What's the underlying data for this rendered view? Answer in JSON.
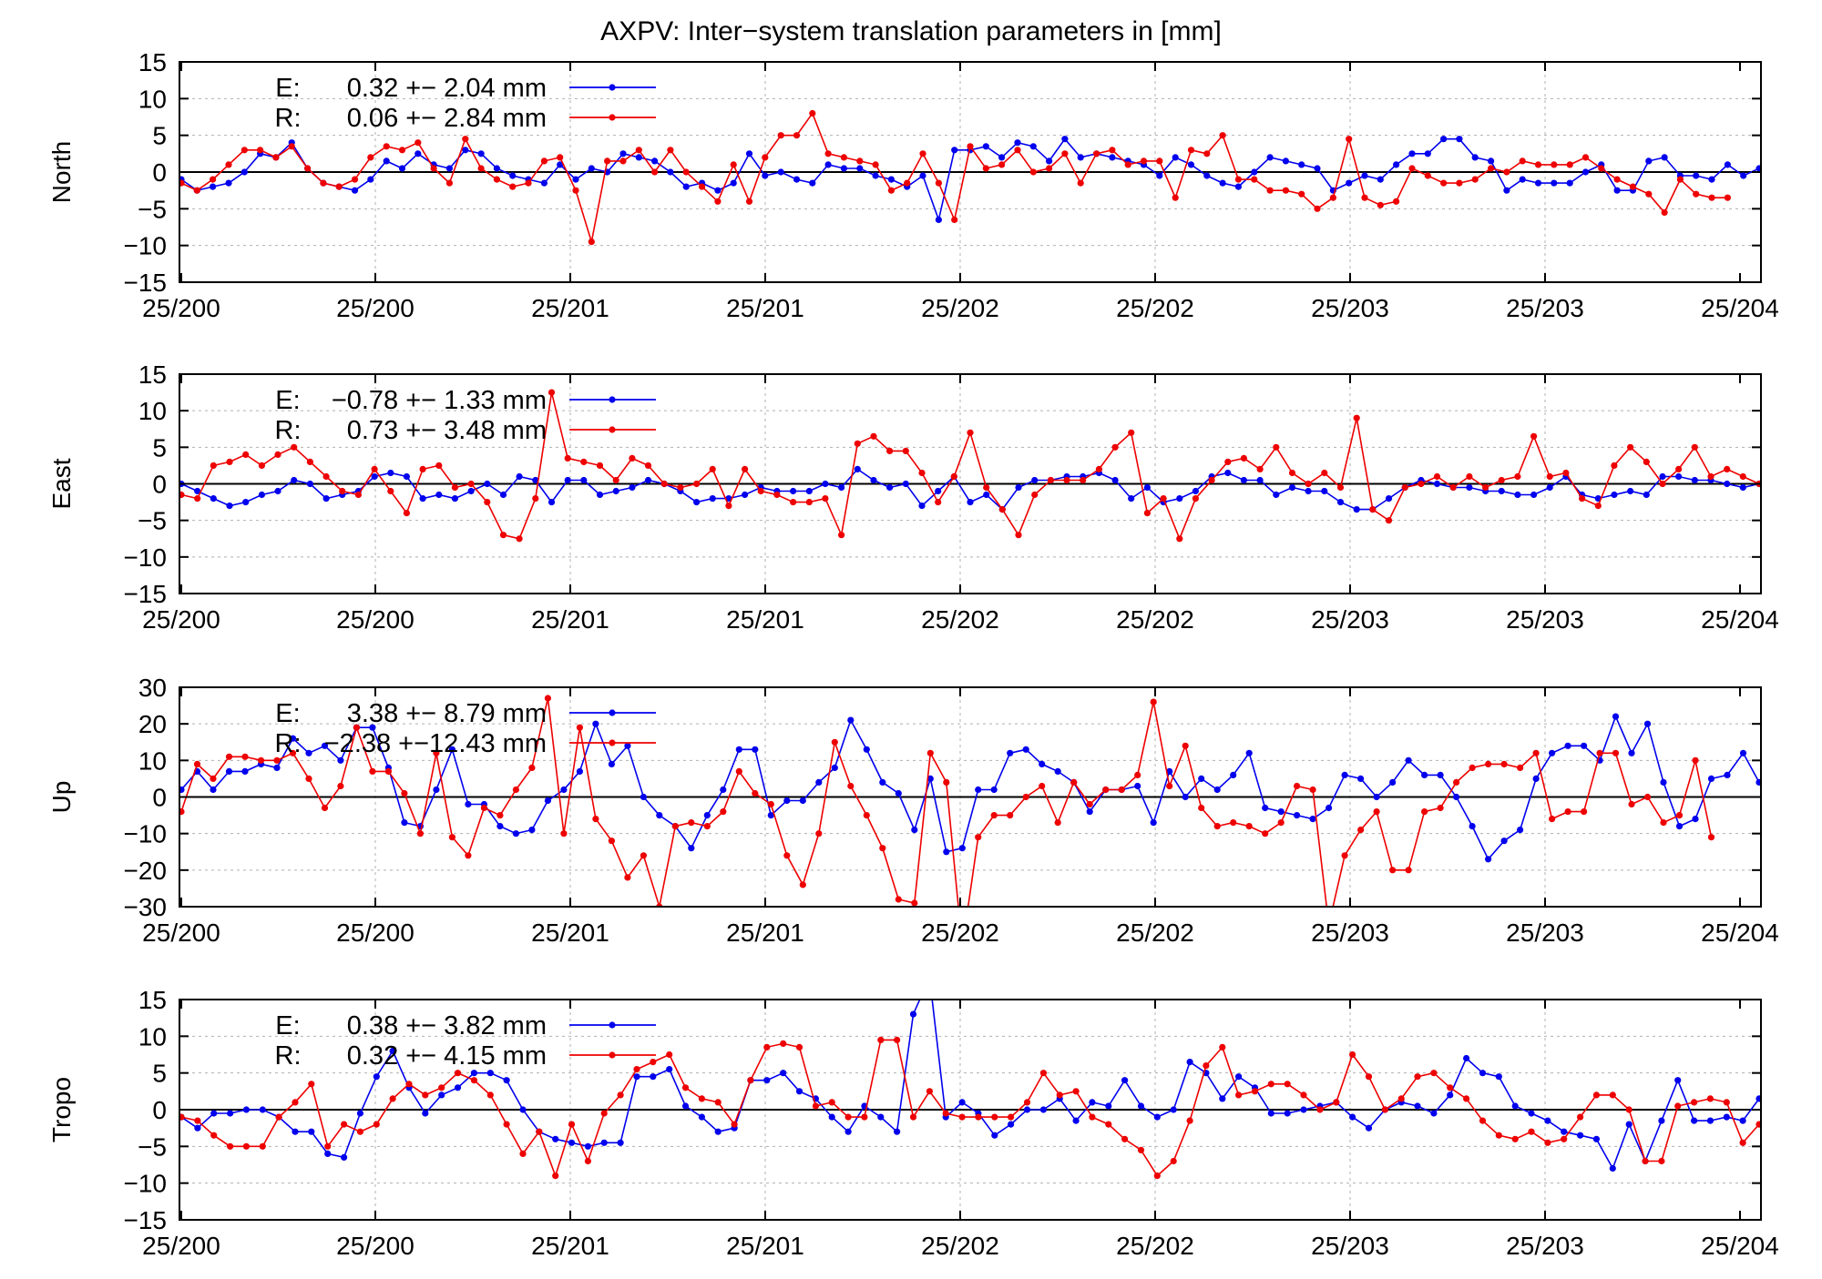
{
  "figure": {
    "title": "AXPV: Inter−system translation parameters in [mm]"
  },
  "colors": {
    "E": "#0000ee",
    "R": "#ee0000"
  },
  "chart_data": [
    {
      "type": "line",
      "ylabel": "North",
      "ylim": [
        -15,
        15
      ],
      "yticks": [
        -15,
        -10,
        -5,
        0,
        5,
        10,
        15
      ],
      "xticklabels": [
        "25/200",
        "25/200",
        "25/201",
        "25/201",
        "25/202",
        "25/202",
        "25/203",
        "25/203",
        "25/204"
      ],
      "grid": true,
      "legend_position": "top-left",
      "series": [
        {
          "name": "E",
          "stat": "0.32 +− 2.04 mm",
          "values": [
            -1,
            -2.5,
            -2,
            -1.5,
            0,
            2.5,
            2,
            4,
            0.5,
            -1.5,
            -2,
            -2.5,
            -1,
            1.5,
            0.5,
            2.5,
            1,
            0.5,
            3,
            2.5,
            0.5,
            -0.5,
            -1,
            -1.5,
            1,
            -1,
            0.5,
            0,
            2.5,
            2,
            1.5,
            0,
            -2,
            -1.5,
            -2.5,
            -1.5,
            2.5,
            -0.5,
            0,
            -1,
            -1.5,
            1,
            0.5,
            0.5,
            -0.5,
            -1,
            -2,
            -0.5,
            -6.5,
            3,
            3,
            3.5,
            2,
            4,
            3.5,
            1.5,
            4.5,
            2,
            2.5,
            2,
            1.5,
            1,
            -0.5,
            2,
            1,
            -0.5,
            -1.5,
            -2,
            0,
            2,
            1.5,
            1,
            0.5,
            -2.5,
            -1.5,
            -0.5,
            -1,
            1,
            2.5,
            2.5,
            4.5,
            4.5,
            2,
            1.5,
            -2.5,
            -1,
            -1.5,
            -1.5,
            -1.5,
            0,
            1,
            -2.5,
            -2.5,
            1.5,
            2,
            -0.5,
            -0.5,
            -1,
            1,
            -0.5,
            0.5
          ]
        },
        {
          "name": "R",
          "stat": "0.06 +− 2.84 mm",
          "values": [
            -1.5,
            -2.5,
            -1,
            1,
            3,
            3,
            2,
            3.5,
            0.5,
            -1.5,
            -2,
            -1,
            2,
            3.5,
            3,
            4,
            0.5,
            -1.5,
            4.5,
            0.5,
            -1,
            -2,
            -1.5,
            1.5,
            2,
            -2.5,
            -9.5,
            1.5,
            1.5,
            3,
            0,
            3,
            0,
            -2,
            -4,
            1,
            -4,
            2,
            5,
            5,
            8,
            2.5,
            2,
            1.5,
            1,
            -2.5,
            -1.5,
            2.5,
            -1.5,
            -6.5,
            3.5,
            0.5,
            1,
            3,
            0,
            0.5,
            2.5,
            -1.5,
            2.5,
            3,
            1,
            1.5,
            1.5,
            -3.5,
            3,
            2.5,
            5,
            -1,
            -1,
            -2.5,
            -2.5,
            -3,
            -5,
            -3.5,
            4.5,
            -3.5,
            -4.5,
            -4,
            0.5,
            -0.5,
            -1.5,
            -1.5,
            -1,
            0.5,
            0,
            1.5,
            1,
            1,
            1,
            2,
            0.5,
            -1,
            -2,
            -3,
            -5.5,
            -1,
            -3,
            -3.5,
            -3.5
          ]
        }
      ]
    },
    {
      "type": "line",
      "ylabel": "East",
      "ylim": [
        -15,
        15
      ],
      "yticks": [
        -15,
        -10,
        -5,
        0,
        5,
        10,
        15
      ],
      "xticklabels": [
        "25/200",
        "25/200",
        "25/201",
        "25/201",
        "25/202",
        "25/202",
        "25/203",
        "25/203",
        "25/204"
      ],
      "grid": true,
      "legend_position": "top-left",
      "series": [
        {
          "name": "E",
          "stat": "−0.78 +− 1.33 mm",
          "values": [
            0,
            -1,
            -2,
            -3,
            -2.5,
            -1.5,
            -1,
            0.5,
            0,
            -2,
            -1.5,
            -1,
            1,
            1.5,
            1,
            -2,
            -1.5,
            -2,
            -1,
            0,
            -1.5,
            1,
            0.5,
            -2.5,
            0.5,
            0.5,
            -1.5,
            -1,
            -0.5,
            0.5,
            0,
            -1,
            -2.5,
            -2,
            -2,
            -1.5,
            -0.5,
            -1,
            -1,
            -1,
            0,
            -0.5,
            2,
            0.5,
            -0.5,
            0,
            -3,
            -1,
            1,
            -2.5,
            -1.5,
            -3.5,
            -0.5,
            0.5,
            0.5,
            1,
            1,
            1.5,
            0.5,
            -2,
            -0.5,
            -2.5,
            -2,
            -1,
            1,
            1.5,
            0.5,
            0.5,
            -1.5,
            -0.5,
            -1,
            -1,
            -2.5,
            -3.5,
            -3.5,
            -2,
            -0.5,
            0.5,
            0,
            -0.5,
            -0.5,
            -1,
            -1,
            -1.5,
            -1.5,
            -0.5,
            1,
            -1.5,
            -2,
            -1.5,
            -1,
            -1.5,
            1,
            1,
            0.5,
            0.5,
            0,
            -0.5,
            0
          ]
        },
        {
          "name": "R",
          "stat": "0.73 +− 3.48 mm",
          "values": [
            -1.5,
            -2,
            2.5,
            3,
            4,
            2.5,
            4,
            5,
            3,
            1,
            -1,
            -1.5,
            2,
            -1,
            -4,
            2,
            2.5,
            -0.5,
            0,
            -2.5,
            -7,
            -7.5,
            -2,
            12.5,
            3.5,
            3,
            2.5,
            0.5,
            3.5,
            2.5,
            0,
            -0.5,
            0,
            2,
            -3,
            2,
            -1,
            -1.5,
            -2.5,
            -2.5,
            -2,
            -7,
            5.5,
            6.5,
            4.5,
            4.5,
            1.5,
            -2.5,
            1,
            7,
            -0.5,
            -3.5,
            -7,
            -1.5,
            0.5,
            0.5,
            0.5,
            2,
            5,
            7,
            -4,
            -2,
            -7.5,
            -2,
            0.5,
            3,
            3.5,
            2,
            5,
            1.5,
            0,
            1.5,
            -0.5,
            9,
            -3.5,
            -5,
            -0.5,
            0,
            1,
            -0.5,
            1,
            -0.5,
            0.5,
            1,
            6.5,
            1,
            1.5,
            -2,
            -3,
            2.5,
            5,
            3,
            0,
            2,
            5,
            1,
            2,
            1,
            0
          ]
        }
      ]
    },
    {
      "type": "line",
      "ylabel": "Up",
      "ylim": [
        -30,
        30
      ],
      "yticks": [
        -30,
        -20,
        -10,
        0,
        10,
        20,
        30
      ],
      "xticklabels": [
        "25/200",
        "25/200",
        "25/201",
        "25/201",
        "25/202",
        "25/202",
        "25/203",
        "25/203",
        "25/204"
      ],
      "grid": true,
      "legend_position": "top-left",
      "series": [
        {
          "name": "E",
          "stat": "3.38 +− 8.79 mm",
          "values": [
            2,
            7,
            2,
            7,
            7,
            9,
            8,
            16,
            12,
            14,
            10,
            19,
            19,
            8,
            -7,
            -8,
            2,
            13,
            -2,
            -2,
            -8,
            -10,
            -9,
            -1,
            2,
            7,
            20,
            9,
            14,
            0,
            -5,
            -8,
            -14,
            -5,
            2,
            13,
            13,
            -5,
            -1,
            -1,
            4,
            8,
            21,
            13,
            4,
            1,
            -9,
            5,
            -15,
            -14,
            2,
            2,
            12,
            13,
            9,
            7,
            4,
            -4,
            2,
            2,
            3,
            -7,
            7,
            0,
            5,
            2,
            6,
            12,
            -3,
            -4,
            -5,
            -6,
            -3,
            6,
            5,
            0,
            4,
            10,
            6,
            6,
            0,
            -8,
            -17,
            -12,
            -9,
            5,
            12,
            14,
            14,
            10,
            22,
            12,
            20,
            4,
            -8,
            -6,
            5,
            6,
            12,
            4
          ]
        },
        {
          "name": "R",
          "stat": "−2.38 +−12.43 mm",
          "values": [
            -4,
            9,
            5,
            11,
            11,
            10,
            10,
            12,
            5,
            -3,
            3,
            19,
            7,
            7,
            1,
            -10,
            12,
            -11,
            -16,
            -3,
            -5,
            2,
            8,
            27,
            -10,
            19,
            -6,
            -12,
            -22,
            -16,
            -30,
            -8,
            -7,
            -8,
            -4,
            7,
            1,
            -2,
            -16,
            -24,
            -10,
            15,
            3,
            -5,
            -14,
            -28,
            -29,
            12,
            4,
            -41,
            -11,
            -5,
            -5,
            0,
            3,
            -7,
            4,
            -2,
            2,
            2,
            6,
            26,
            3,
            14,
            -3,
            -8,
            -7,
            -8,
            -10,
            -7,
            3,
            2,
            -35,
            -16,
            -9,
            -4,
            -20,
            -20,
            -4,
            -3,
            4,
            8,
            9,
            9,
            8,
            12,
            -6,
            -4,
            -4,
            12,
            12,
            -2,
            0,
            -7,
            -5,
            10,
            -11
          ]
        }
      ]
    },
    {
      "type": "line",
      "ylabel": "Tropo",
      "ylim": [
        -15,
        15
      ],
      "yticks": [
        -15,
        -10,
        -5,
        0,
        5,
        10,
        15
      ],
      "xticklabels": [
        "25/200",
        "25/200",
        "25/201",
        "25/201",
        "25/202",
        "25/202",
        "25/203",
        "25/203",
        "25/204"
      ],
      "grid": true,
      "legend_position": "top-left",
      "series": [
        {
          "name": "E",
          "stat": "0.38 +− 3.82 mm",
          "values": [
            -1,
            -2.5,
            -0.5,
            -0.5,
            0,
            0,
            -1,
            -3,
            -3,
            -6,
            -6.5,
            -0.5,
            4.5,
            8,
            3,
            -0.5,
            2,
            3,
            5,
            5,
            4,
            0,
            -3,
            -4,
            -4.5,
            -5,
            -4.5,
            -4.5,
            4.5,
            4.5,
            5.5,
            0.5,
            -1,
            -3,
            -2.5,
            4,
            4,
            5,
            2.5,
            1.5,
            -1,
            -3,
            0.5,
            -1,
            -3,
            13,
            18,
            -1,
            1,
            -0.5,
            -3.5,
            -2,
            0,
            0,
            1.5,
            -1.5,
            1,
            0.5,
            4,
            0.5,
            -1,
            0,
            6.5,
            5,
            1.5,
            4.5,
            3,
            -0.5,
            -0.5,
            0,
            0.5,
            1,
            -1,
            -2.5,
            0,
            1,
            0.5,
            -0.5,
            2,
            7,
            5,
            4.5,
            0.5,
            -0.5,
            -1.5,
            -3,
            -3.5,
            -4,
            -8,
            -2,
            -7,
            -1.5,
            4,
            -1.5,
            -1.5,
            -1,
            -1.5,
            1.5
          ]
        },
        {
          "name": "R",
          "stat": "0.32 +− 4.15 mm",
          "values": [
            -1,
            -1.5,
            -3.5,
            -5,
            -5,
            -5,
            -1,
            1,
            3.5,
            -5,
            -2,
            -3,
            -2,
            1.5,
            3.5,
            2,
            3,
            5,
            4,
            2,
            -2,
            -6,
            -3,
            -9,
            -2,
            -7,
            -0.5,
            2,
            5.5,
            6.5,
            7.5,
            3,
            1.5,
            1,
            -2,
            4,
            8.5,
            9,
            8.5,
            0.5,
            1,
            -1,
            -1,
            9.5,
            9.5,
            -1,
            2.5,
            -0.5,
            -1,
            -1,
            -1,
            -1,
            1,
            5,
            2,
            2.5,
            -1,
            -2,
            -4,
            -5.5,
            -9,
            -7,
            -1.5,
            6,
            8.5,
            2,
            2.5,
            3.5,
            3.5,
            2,
            0,
            1,
            7.5,
            4.5,
            0,
            1.5,
            4.5,
            5,
            3,
            1.5,
            -1.5,
            -3.5,
            -4,
            -3,
            -4.5,
            -4,
            -1,
            2,
            2,
            0,
            -7,
            -7,
            0.5,
            1,
            1.5,
            1,
            -4.5,
            -2
          ]
        }
      ]
    }
  ]
}
